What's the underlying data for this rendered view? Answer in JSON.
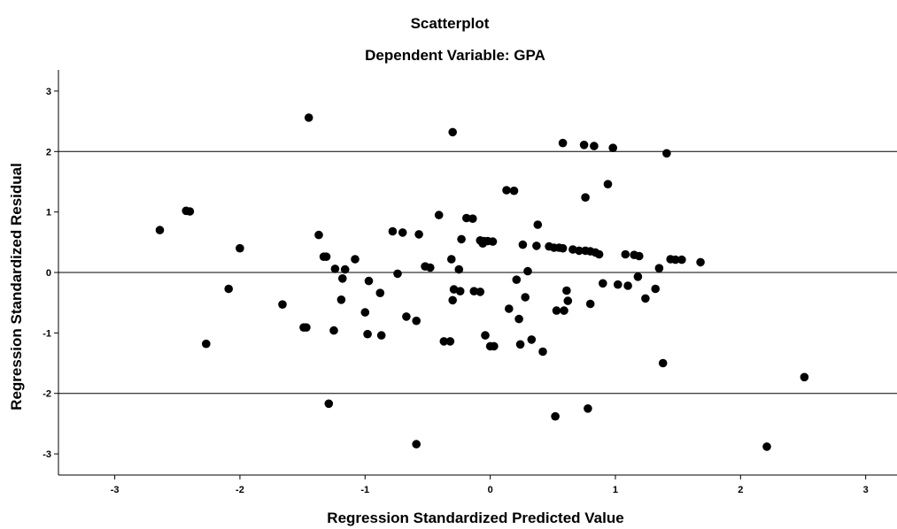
{
  "chart_data": {
    "type": "scatter",
    "title": "Scatterplot",
    "subtitle": "Dependent Variable: GPA",
    "xlabel": "Regression Standardized Predicted Value",
    "ylabel": "Regression Standardized Residual",
    "xlim": [
      -3.45,
      3.25
    ],
    "ylim": [
      -3.35,
      3.35
    ],
    "xticks": [
      -3,
      -2,
      -1,
      0,
      1,
      2,
      3
    ],
    "yticks": [
      -3,
      -2,
      -1,
      0,
      1,
      2,
      3
    ],
    "reference_lines_y": [
      2,
      0,
      -2
    ],
    "grid": false,
    "point_color": "#000000",
    "points": [
      [
        -2.64,
        0.7
      ],
      [
        -2.43,
        1.02
      ],
      [
        -2.4,
        1.01
      ],
      [
        -2.27,
        -1.18
      ],
      [
        -2.09,
        -0.27
      ],
      [
        -2.0,
        0.4
      ],
      [
        -1.66,
        -0.53
      ],
      [
        -1.49,
        -0.91
      ],
      [
        -1.47,
        -0.91
      ],
      [
        -1.45,
        2.56
      ],
      [
        -1.37,
        0.62
      ],
      [
        -1.33,
        0.26
      ],
      [
        -1.31,
        0.26
      ],
      [
        -1.29,
        -2.17
      ],
      [
        -1.25,
        -0.96
      ],
      [
        -1.24,
        0.06
      ],
      [
        -1.19,
        -0.45
      ],
      [
        -1.18,
        -0.1
      ],
      [
        -1.16,
        0.05
      ],
      [
        -1.08,
        0.22
      ],
      [
        -1.0,
        -0.66
      ],
      [
        -0.98,
        -1.02
      ],
      [
        -0.97,
        -0.14
      ],
      [
        -0.88,
        -0.34
      ],
      [
        -0.87,
        -1.04
      ],
      [
        -0.78,
        0.68
      ],
      [
        -0.74,
        -0.02
      ],
      [
        -0.7,
        0.66
      ],
      [
        -0.67,
        -0.73
      ],
      [
        -0.59,
        -0.8
      ],
      [
        -0.59,
        -2.84
      ],
      [
        -0.57,
        0.63
      ],
      [
        -0.52,
        0.1
      ],
      [
        -0.48,
        0.08
      ],
      [
        -0.41,
        0.95
      ],
      [
        -0.37,
        -1.14
      ],
      [
        -0.32,
        -1.14
      ],
      [
        -0.31,
        0.22
      ],
      [
        -0.3,
        -0.46
      ],
      [
        -0.3,
        2.32
      ],
      [
        -0.29,
        -0.28
      ],
      [
        -0.25,
        0.05
      ],
      [
        -0.24,
        -0.31
      ],
      [
        -0.23,
        0.55
      ],
      [
        -0.19,
        0.9
      ],
      [
        -0.14,
        0.89
      ],
      [
        -0.13,
        -0.31
      ],
      [
        -0.08,
        0.53
      ],
      [
        -0.08,
        -0.32
      ],
      [
        -0.06,
        0.48
      ],
      [
        -0.05,
        0.52
      ],
      [
        -0.04,
        -1.04
      ],
      [
        -0.02,
        0.52
      ],
      [
        0.0,
        -1.22
      ],
      [
        0.02,
        0.51
      ],
      [
        0.03,
        -1.22
      ],
      [
        0.13,
        1.36
      ],
      [
        0.15,
        -0.6
      ],
      [
        0.19,
        1.35
      ],
      [
        0.21,
        -0.12
      ],
      [
        0.23,
        -0.77
      ],
      [
        0.24,
        -1.19
      ],
      [
        0.26,
        0.46
      ],
      [
        0.28,
        -0.41
      ],
      [
        0.3,
        0.02
      ],
      [
        0.33,
        -1.11
      ],
      [
        0.37,
        0.44
      ],
      [
        0.38,
        0.79
      ],
      [
        0.42,
        -1.31
      ],
      [
        0.47,
        0.43
      ],
      [
        0.51,
        0.41
      ],
      [
        0.52,
        -2.38
      ],
      [
        0.53,
        -0.63
      ],
      [
        0.55,
        0.41
      ],
      [
        0.58,
        0.4
      ],
      [
        0.58,
        2.14
      ],
      [
        0.59,
        -0.63
      ],
      [
        0.61,
        -0.3
      ],
      [
        0.62,
        -0.47
      ],
      [
        0.66,
        0.38
      ],
      [
        0.71,
        0.36
      ],
      [
        0.75,
        2.11
      ],
      [
        0.76,
        1.24
      ],
      [
        0.76,
        0.36
      ],
      [
        0.78,
        -2.25
      ],
      [
        0.8,
        0.35
      ],
      [
        0.8,
        -0.52
      ],
      [
        0.83,
        2.09
      ],
      [
        0.84,
        0.33
      ],
      [
        0.87,
        0.3
      ],
      [
        0.9,
        -0.18
      ],
      [
        0.94,
        1.46
      ],
      [
        0.98,
        2.06
      ],
      [
        1.02,
        -0.2
      ],
      [
        1.08,
        0.3
      ],
      [
        1.1,
        -0.22
      ],
      [
        1.15,
        0.29
      ],
      [
        1.18,
        -0.07
      ],
      [
        1.19,
        0.27
      ],
      [
        1.24,
        -0.43
      ],
      [
        1.32,
        -0.27
      ],
      [
        1.35,
        0.07
      ],
      [
        1.38,
        -1.5
      ],
      [
        1.41,
        1.97
      ],
      [
        1.44,
        0.22
      ],
      [
        1.48,
        0.21
      ],
      [
        1.53,
        0.21
      ],
      [
        1.68,
        0.17
      ],
      [
        2.21,
        -2.88
      ],
      [
        2.51,
        -1.73
      ]
    ]
  }
}
